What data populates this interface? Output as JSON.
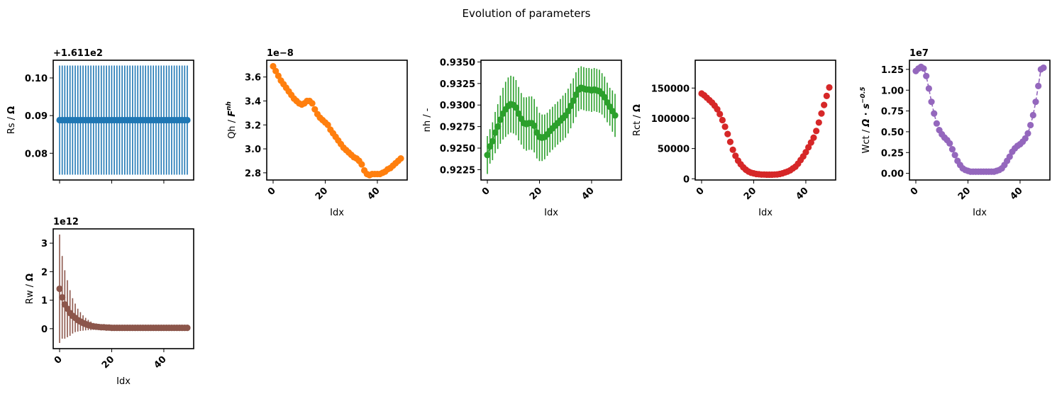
{
  "title": "Evolution of parameters",
  "colors": {
    "Rs": "#1f77b4",
    "Qh": "#ff7f0e",
    "nh": "#2ca02c",
    "Rct": "#d62728",
    "Wct": "#9467bd",
    "Rw": "#8c564b"
  },
  "chart_data": [
    {
      "id": "Rs",
      "type": "scatter",
      "style": "markers with vertical error bars",
      "ylabel_main": "Rs / ",
      "ylabel_bold": "Ω",
      "xlabel": "",
      "offset_text": "+1.611e2",
      "show_xtick_labels": false,
      "xlim": [
        -2.45,
        51.45
      ],
      "ylim": [
        0.0729,
        0.1047
      ],
      "xticks": [
        0,
        20,
        40
      ],
      "yticks": [
        0.08,
        0.09,
        0.1
      ],
      "ytick_labels": [
        "0.08",
        "0.09",
        "0.10"
      ],
      "x": [
        0,
        1,
        2,
        3,
        4,
        5,
        6,
        7,
        8,
        9,
        10,
        11,
        12,
        13,
        14,
        15,
        16,
        17,
        18,
        19,
        20,
        21,
        22,
        23,
        24,
        25,
        26,
        27,
        28,
        29,
        30,
        31,
        32,
        33,
        34,
        35,
        36,
        37,
        38,
        39,
        40,
        41,
        42,
        43,
        44,
        45,
        46,
        47,
        48,
        49
      ],
      "values": [
        0.0888,
        0.0888,
        0.0888,
        0.0888,
        0.0888,
        0.0888,
        0.0888,
        0.0888,
        0.0888,
        0.0888,
        0.0888,
        0.0888,
        0.0888,
        0.0888,
        0.0888,
        0.0888,
        0.0888,
        0.0888,
        0.0888,
        0.0888,
        0.0888,
        0.0888,
        0.0888,
        0.0888,
        0.0888,
        0.0888,
        0.0888,
        0.0888,
        0.0888,
        0.0888,
        0.0888,
        0.0888,
        0.0888,
        0.0888,
        0.0888,
        0.0888,
        0.0888,
        0.0888,
        0.0888,
        0.0888,
        0.0888,
        0.0888,
        0.0888,
        0.0888,
        0.0888,
        0.0888,
        0.0888,
        0.0888,
        0.0888,
        0.0888
      ],
      "errors": [
        0.0145,
        0.0145,
        0.0145,
        0.0145,
        0.0145,
        0.0145,
        0.0145,
        0.0145,
        0.0145,
        0.0145,
        0.0145,
        0.0145,
        0.0145,
        0.0145,
        0.0145,
        0.0145,
        0.0145,
        0.0145,
        0.0145,
        0.0145,
        0.0145,
        0.0145,
        0.0145,
        0.0145,
        0.0145,
        0.0145,
        0.0145,
        0.0145,
        0.0145,
        0.0145,
        0.0145,
        0.0145,
        0.0145,
        0.0145,
        0.0145,
        0.0145,
        0.0145,
        0.0145,
        0.0145,
        0.0145,
        0.0145,
        0.0145,
        0.0145,
        0.0145,
        0.0145,
        0.0145,
        0.0145,
        0.0145,
        0.0145,
        0.0145
      ]
    },
    {
      "id": "Qh",
      "type": "scatter",
      "style": "markers with error bars",
      "ylabel_main": "Qh / ",
      "ylabel_bold": "F",
      "ylabel_sup": "nh",
      "xlabel": "Idx",
      "offset_text": "1e−8",
      "show_xtick_labels": true,
      "xlim": [
        -2.45,
        51.45
      ],
      "ylim": [
        2.74,
        3.74
      ],
      "xticks": [
        0,
        20,
        40
      ],
      "yticks": [
        2.8,
        3.0,
        3.2,
        3.4,
        3.6
      ],
      "ytick_labels": [
        "2.8",
        "3.0",
        "3.2",
        "3.4",
        "3.6"
      ],
      "x": [
        0,
        1,
        2,
        3,
        4,
        5,
        6,
        7,
        8,
        9,
        10,
        11,
        12,
        13,
        14,
        15,
        16,
        17,
        18,
        19,
        20,
        21,
        22,
        23,
        24,
        25,
        26,
        27,
        28,
        29,
        30,
        31,
        32,
        33,
        34,
        35,
        36,
        37,
        38,
        39,
        40,
        41,
        42,
        43,
        44,
        45,
        46,
        47,
        48,
        49
      ],
      "values": [
        3.69,
        3.65,
        3.61,
        3.57,
        3.54,
        3.51,
        3.48,
        3.45,
        3.42,
        3.4,
        3.38,
        3.37,
        3.38,
        3.4,
        3.4,
        3.38,
        3.33,
        3.29,
        3.26,
        3.24,
        3.22,
        3.2,
        3.16,
        3.13,
        3.1,
        3.07,
        3.04,
        3.01,
        2.99,
        2.97,
        2.95,
        2.93,
        2.92,
        2.9,
        2.87,
        2.82,
        2.79,
        2.78,
        2.79,
        2.79,
        2.79,
        2.79,
        2.8,
        2.81,
        2.83,
        2.84,
        2.86,
        2.88,
        2.9,
        2.92
      ],
      "errors": [
        0.005,
        0.005,
        0.005,
        0.005,
        0.005,
        0.005,
        0.005,
        0.005,
        0.005,
        0.005,
        0.005,
        0.005,
        0.005,
        0.005,
        0.005,
        0.005,
        0.005,
        0.005,
        0.005,
        0.005,
        0.005,
        0.005,
        0.005,
        0.005,
        0.005,
        0.005,
        0.005,
        0.005,
        0.005,
        0.005,
        0.005,
        0.005,
        0.005,
        0.005,
        0.005,
        0.005,
        0.005,
        0.005,
        0.005,
        0.005,
        0.005,
        0.005,
        0.005,
        0.005,
        0.005,
        0.005,
        0.005,
        0.005,
        0.005,
        0.005
      ]
    },
    {
      "id": "nh",
      "type": "line",
      "style": "markers with connecting line and vertical error bars",
      "ylabel_main": "nh / -",
      "xlabel": "Idx",
      "offset_text": "",
      "show_xtick_labels": true,
      "xlim": [
        -2.45,
        51.45
      ],
      "ylim": [
        0.9213,
        0.9352
      ],
      "xticks": [
        0,
        20,
        40
      ],
      "yticks": [
        0.9225,
        0.925,
        0.9275,
        0.93,
        0.9325,
        0.935
      ],
      "ytick_labels": [
        "0.9225",
        "0.9250",
        "0.9275",
        "0.9300",
        "0.9325",
        "0.9350"
      ],
      "x": [
        0,
        1,
        2,
        3,
        4,
        5,
        6,
        7,
        8,
        9,
        10,
        11,
        12,
        13,
        14,
        15,
        16,
        17,
        18,
        19,
        20,
        21,
        22,
        23,
        24,
        25,
        26,
        27,
        28,
        29,
        30,
        31,
        32,
        33,
        34,
        35,
        36,
        37,
        38,
        39,
        40,
        41,
        42,
        43,
        44,
        45,
        46,
        47,
        48,
        49
      ],
      "values": [
        0.9242,
        0.9252,
        0.9258,
        0.9268,
        0.9275,
        0.9283,
        0.929,
        0.9295,
        0.9299,
        0.9301,
        0.93,
        0.9297,
        0.929,
        0.9284,
        0.9279,
        0.9278,
        0.9279,
        0.9279,
        0.9276,
        0.9268,
        0.9263,
        0.9262,
        0.9263,
        0.9266,
        0.927,
        0.9273,
        0.9276,
        0.9279,
        0.9282,
        0.9285,
        0.9288,
        0.9293,
        0.9299,
        0.9305,
        0.9312,
        0.9318,
        0.932,
        0.9319,
        0.9318,
        0.9318,
        0.9317,
        0.9318,
        0.9317,
        0.9316,
        0.9313,
        0.9309,
        0.9303,
        0.9298,
        0.9293,
        0.9288
      ],
      "errors": [
        0.0022,
        0.002,
        0.0022,
        0.0024,
        0.0026,
        0.0028,
        0.003,
        0.0032,
        0.0033,
        0.0033,
        0.0033,
        0.0032,
        0.0031,
        0.003,
        0.003,
        0.0031,
        0.0031,
        0.0031,
        0.0031,
        0.003,
        0.0028,
        0.0027,
        0.0026,
        0.0025,
        0.0025,
        0.0025,
        0.0025,
        0.0025,
        0.0025,
        0.0026,
        0.0026,
        0.0026,
        0.0026,
        0.0026,
        0.0026,
        0.0025,
        0.0025,
        0.0025,
        0.0025,
        0.0025,
        0.0025,
        0.0025,
        0.0025,
        0.0025,
        0.0024,
        0.0024,
        0.0023,
        0.0022,
        0.0024,
        0.0025
      ]
    },
    {
      "id": "Rct",
      "type": "scatter",
      "style": "markers",
      "ylabel_main": "Rct / ",
      "ylabel_bold": "Ω",
      "xlabel": "Idx",
      "offset_text": "",
      "show_xtick_labels": true,
      "xlim": [
        -2.45,
        51.45
      ],
      "ylim": [
        -2000,
        196000
      ],
      "xticks": [
        0,
        20,
        40
      ],
      "yticks": [
        0,
        50000,
        100000,
        150000
      ],
      "ytick_labels": [
        "0",
        "50000",
        "100000",
        "150000"
      ],
      "x": [
        0,
        1,
        2,
        3,
        4,
        5,
        6,
        7,
        8,
        9,
        10,
        11,
        12,
        13,
        14,
        15,
        16,
        17,
        18,
        19,
        20,
        21,
        22,
        23,
        24,
        25,
        26,
        27,
        28,
        29,
        30,
        31,
        32,
        33,
        34,
        35,
        36,
        37,
        38,
        39,
        40,
        41,
        42,
        43,
        44,
        45,
        46,
        47,
        48,
        49
      ],
      "values": [
        141000,
        138000,
        134000,
        130000,
        126000,
        121000,
        115000,
        107000,
        97000,
        86000,
        74000,
        61000,
        48000,
        38000,
        30000,
        24000,
        19000,
        15000,
        12000,
        10000,
        9000,
        8000,
        7500,
        7000,
        7000,
        6800,
        6800,
        6800,
        7000,
        7200,
        8000,
        9000,
        10500,
        12000,
        14000,
        17000,
        20000,
        25000,
        31000,
        37000,
        44000,
        52000,
        60000,
        68000,
        79000,
        93000,
        108000,
        122000,
        137000,
        151000
      ],
      "errors": [
        0,
        0,
        0,
        0,
        0,
        0,
        0,
        0,
        0,
        0,
        0,
        0,
        0,
        0,
        0,
        0,
        0,
        0,
        0,
        0,
        0,
        0,
        0,
        0,
        0,
        0,
        0,
        0,
        0,
        0,
        0,
        0,
        0,
        0,
        0,
        0,
        0,
        0,
        0,
        0,
        0,
        0,
        0,
        0,
        0,
        0,
        0,
        0,
        0,
        0
      ]
    },
    {
      "id": "Wct",
      "type": "line",
      "style": "markers with dashed line",
      "ylabel_main": "Wct / ",
      "ylabel_bold": "Ω ⋅ s",
      "ylabel_sup": "−0.5",
      "xlabel": "Idx",
      "offset_text": "1e7",
      "show_xtick_labels": true,
      "xlim": [
        -2.45,
        51.45
      ],
      "ylim": [
        -0.08,
        1.36
      ],
      "xticks": [
        0,
        20,
        40
      ],
      "yticks": [
        0,
        0.25,
        0.5,
        0.75,
        1.0,
        1.25
      ],
      "ytick_labels": [
        "0.00",
        "0.25",
        "0.50",
        "0.75",
        "1.00",
        "1.25"
      ],
      "x": [
        0,
        1,
        2,
        3,
        4,
        5,
        6,
        7,
        8,
        9,
        10,
        11,
        12,
        13,
        14,
        15,
        16,
        17,
        18,
        19,
        20,
        21,
        22,
        23,
        24,
        25,
        26,
        27,
        28,
        29,
        30,
        31,
        32,
        33,
        34,
        35,
        36,
        37,
        38,
        39,
        40,
        41,
        42,
        43,
        44,
        45,
        46,
        47,
        48,
        49
      ],
      "values": [
        1.23,
        1.26,
        1.28,
        1.26,
        1.17,
        1.02,
        0.86,
        0.72,
        0.6,
        0.52,
        0.47,
        0.43,
        0.4,
        0.36,
        0.29,
        0.22,
        0.15,
        0.1,
        0.06,
        0.04,
        0.03,
        0.02,
        0.02,
        0.02,
        0.02,
        0.02,
        0.02,
        0.02,
        0.02,
        0.02,
        0.02,
        0.03,
        0.04,
        0.06,
        0.1,
        0.15,
        0.2,
        0.26,
        0.3,
        0.33,
        0.35,
        0.38,
        0.42,
        0.48,
        0.58,
        0.7,
        0.86,
        1.05,
        1.25,
        1.27
      ],
      "errors": [
        0,
        0,
        0,
        0,
        0,
        0,
        0,
        0,
        0,
        0,
        0,
        0,
        0,
        0,
        0,
        0,
        0,
        0,
        0,
        0,
        0,
        0,
        0,
        0,
        0,
        0,
        0,
        0,
        0,
        0,
        0,
        0,
        0,
        0,
        0,
        0,
        0,
        0,
        0,
        0,
        0,
        0,
        0,
        0,
        0,
        0,
        0,
        0,
        0,
        0
      ]
    },
    {
      "id": "Rw",
      "type": "scatter",
      "style": "markers with vertical error bars",
      "ylabel_main": "Rw / ",
      "ylabel_bold": "Ω",
      "xlabel": "Idx",
      "offset_text": "1e12",
      "show_xtick_labels": true,
      "xlim": [
        -2.45,
        51.45
      ],
      "ylim": [
        -0.7,
        3.5
      ],
      "xticks": [
        0,
        20,
        40
      ],
      "yticks": [
        0,
        1,
        2,
        3
      ],
      "ytick_labels": [
        "0",
        "1",
        "2",
        "3"
      ],
      "x": [
        0,
        1,
        2,
        3,
        4,
        5,
        6,
        7,
        8,
        9,
        10,
        11,
        12,
        13,
        14,
        15,
        16,
        17,
        18,
        19,
        20,
        21,
        22,
        23,
        24,
        25,
        26,
        27,
        28,
        29,
        30,
        31,
        32,
        33,
        34,
        35,
        36,
        37,
        38,
        39,
        40,
        41,
        42,
        43,
        44,
        45,
        46,
        47,
        48,
        49
      ],
      "values": [
        1.4,
        1.1,
        0.85,
        0.7,
        0.55,
        0.45,
        0.38,
        0.3,
        0.25,
        0.2,
        0.16,
        0.13,
        0.1,
        0.08,
        0.07,
        0.06,
        0.05,
        0.05,
        0.04,
        0.04,
        0.03,
        0.03,
        0.03,
        0.03,
        0.03,
        0.03,
        0.03,
        0.03,
        0.03,
        0.03,
        0.03,
        0.03,
        0.03,
        0.03,
        0.03,
        0.03,
        0.03,
        0.03,
        0.03,
        0.03,
        0.03,
        0.03,
        0.03,
        0.03,
        0.03,
        0.03,
        0.03,
        0.03,
        0.03,
        0.03
      ],
      "errors": [
        1.9,
        1.45,
        1.2,
        1.0,
        0.8,
        0.62,
        0.5,
        0.4,
        0.33,
        0.27,
        0.22,
        0.18,
        0.15,
        0.12,
        0.1,
        0.08,
        0.06,
        0.05,
        0.04,
        0.03,
        0.02,
        0.02,
        0.02,
        0.02,
        0.02,
        0.02,
        0.02,
        0.02,
        0.02,
        0.02,
        0.02,
        0.02,
        0.02,
        0.02,
        0.02,
        0.02,
        0.02,
        0.02,
        0.02,
        0.02,
        0.02,
        0.02,
        0.02,
        0.02,
        0.02,
        0.02,
        0.02,
        0.02,
        0.02,
        0.02
      ]
    }
  ]
}
